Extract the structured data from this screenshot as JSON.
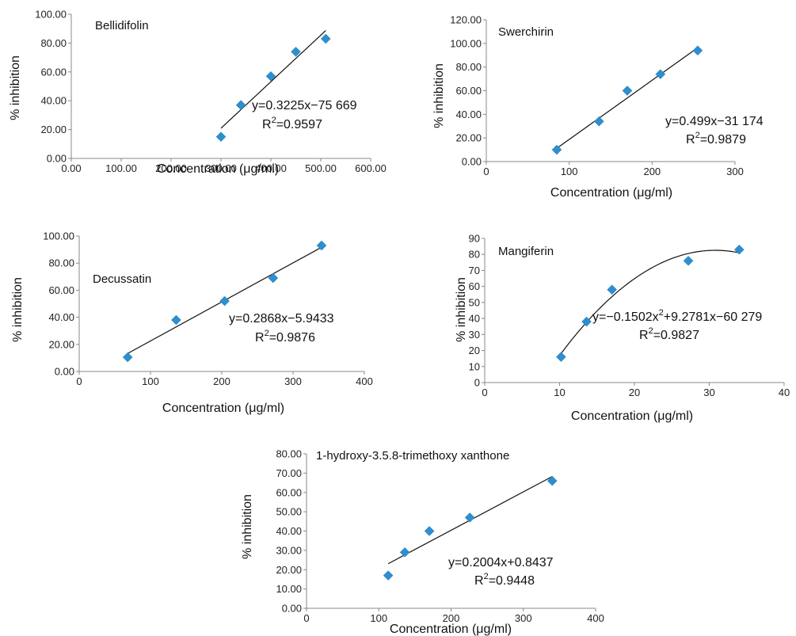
{
  "chart_data": [
    {
      "type": "scatter",
      "title": "Bellidifolin",
      "xlabel": "Concentration (μg/ml)",
      "ylabel": "% inhibition",
      "xlim": [
        0,
        600
      ],
      "ylim": [
        0,
        100
      ],
      "xticks": [
        "0.00",
        "100.00",
        "200.00",
        "300.00",
        "400.00",
        "500.00",
        "600.00"
      ],
      "yticks": [
        "0.00",
        "20.00",
        "40.00",
        "60.00",
        "80.00",
        "100.00"
      ],
      "x": [
        300,
        340,
        400,
        450,
        510
      ],
      "y": [
        15,
        37,
        57,
        74,
        83
      ],
      "fit": {
        "kind": "linear",
        "x_range": [
          300,
          510
        ]
      },
      "equation": "y=0.3225x−75 669",
      "r2_label": "R",
      "r2_sup": "2",
      "r2_value": "=0.9597"
    },
    {
      "type": "scatter",
      "title": "Swerchirin",
      "xlabel": "Concentration (μg/ml)",
      "ylabel": "% inhibition",
      "xlim": [
        0,
        300
      ],
      "ylim": [
        0,
        120
      ],
      "xticks": [
        "0",
        "100",
        "200",
        "300"
      ],
      "yticks": [
        "0.00",
        "20.00",
        "40.00",
        "60.00",
        "80.00",
        "100.00",
        "120.00"
      ],
      "x": [
        85,
        136,
        170,
        210,
        255
      ],
      "y": [
        10,
        34,
        60,
        74,
        94
      ],
      "fit": {
        "kind": "linear",
        "x_range": [
          85,
          255
        ]
      },
      "equation": "y=0.499x−31 174",
      "r2_label": "R",
      "r2_sup": "2",
      "r2_value": "=0.9879"
    },
    {
      "type": "scatter",
      "title": "Decussatin",
      "xlabel": "Concentration (μg/ml)",
      "ylabel": "% inhibition",
      "xlim": [
        0,
        400
      ],
      "ylim": [
        0,
        100
      ],
      "xticks": [
        "0",
        "100",
        "200",
        "300",
        "400"
      ],
      "yticks": [
        "0.00",
        "20.00",
        "40.00",
        "60.00",
        "80.00",
        "100.00"
      ],
      "x": [
        68,
        136,
        204,
        272,
        340
      ],
      "y": [
        10.5,
        38,
        52,
        69,
        93
      ],
      "fit": {
        "kind": "linear",
        "x_range": [
          68,
          340
        ]
      },
      "equation": "y=0.2868x−5.9433",
      "r2_label": "R",
      "r2_sup": "2",
      "r2_value": "=0.9876"
    },
    {
      "type": "scatter",
      "title": "Mangiferin",
      "xlabel": "Concentration (μg/ml)",
      "ylabel": "% inhibition",
      "xlim": [
        0,
        40
      ],
      "ylim": [
        0,
        90
      ],
      "xticks": [
        "0",
        "10",
        "20",
        "30",
        "40"
      ],
      "yticks": [
        "0",
        "10",
        "20",
        "30",
        "40",
        "50",
        "60",
        "70",
        "80",
        "90"
      ],
      "x": [
        10.2,
        13.6,
        17,
        27.2,
        34
      ],
      "y": [
        16,
        38,
        58,
        76,
        83
      ],
      "fit": {
        "kind": "quadratic",
        "x_range": [
          10.2,
          34
        ]
      },
      "equation_pre": "y=−0.1502x",
      "equation_sup": "2",
      "equation_post": "+9.2781x−60 279",
      "r2_label": "R",
      "r2_sup": "2",
      "r2_value": "=0.9827"
    },
    {
      "type": "scatter",
      "title": "1-hydroxy-3.5.8-trimethoxy xanthone",
      "xlabel": "Concentration (μg/ml)",
      "ylabel": "% inhibition",
      "xlim": [
        0,
        400
      ],
      "ylim": [
        0,
        80
      ],
      "xticks": [
        "0",
        "100",
        "200",
        "300",
        "400"
      ],
      "yticks": [
        "0.00",
        "10.00",
        "20.00",
        "30.00",
        "40.00",
        "50.00",
        "60.00",
        "70.00",
        "80.00"
      ],
      "x": [
        113,
        136,
        170,
        226,
        340
      ],
      "y": [
        17,
        29,
        40,
        47,
        66
      ],
      "fit": {
        "kind": "linear",
        "x_range": [
          113,
          340
        ]
      },
      "equation": "y=0.2004x+0.8437",
      "r2_label": "R",
      "r2_sup": "2",
      "r2_value": "=0.9448"
    }
  ]
}
